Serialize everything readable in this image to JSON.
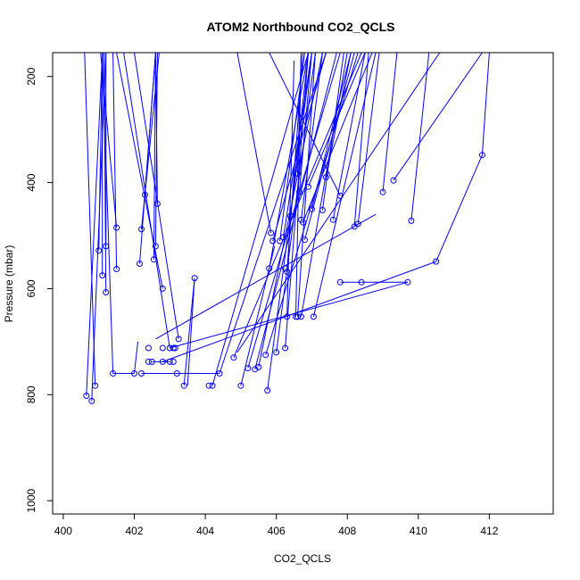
{
  "chart_data": {
    "type": "line",
    "title": "ATOM2 Northbound CO2_QCLS",
    "xlabel": "CO2_QCLS",
    "ylabel": "Pressure (mbar)",
    "xlim": [
      399.7,
      413.8
    ],
    "ylim": [
      1025,
      155
    ],
    "y_reversed": true,
    "x_ticks": [
      400,
      402,
      404,
      406,
      408,
      410,
      412
    ],
    "y_ticks": [
      200,
      400,
      600,
      800,
      1000
    ],
    "grid": false,
    "legend": "none",
    "series_color": "#0000ff",
    "marker": "open-circle",
    "series": [
      {
        "points": [
          [
            400.65,
            802
          ],
          [
            400.8,
            812
          ],
          [
            400.9,
            783
          ],
          [
            401.0,
            528
          ],
          [
            401.1,
            575
          ],
          [
            401.2,
            607
          ],
          [
            401.2,
            520
          ],
          [
            401.4,
            760
          ],
          [
            401.5,
            485
          ],
          [
            401.5,
            563
          ]
        ]
      },
      {
        "points": [
          [
            402.0,
            760
          ],
          [
            402.2,
            760
          ],
          [
            402.15,
            553
          ],
          [
            402.2,
            488
          ],
          [
            402.3,
            423
          ],
          [
            402.4,
            738
          ],
          [
            402.4,
            712
          ],
          [
            402.5,
            738
          ],
          [
            402.55,
            545
          ],
          [
            402.6,
            520
          ],
          [
            402.65,
            440
          ],
          [
            402.8,
            712
          ],
          [
            402.8,
            600
          ],
          [
            402.8,
            738
          ]
        ]
      },
      {
        "points": [
          [
            403.0,
            712
          ],
          [
            403.0,
            738
          ],
          [
            403.1,
            712
          ],
          [
            403.1,
            738
          ],
          [
            403.15,
            712
          ],
          [
            403.2,
            760
          ],
          [
            403.25,
            695
          ],
          [
            403.4,
            783
          ],
          [
            403.7,
            580
          ],
          [
            404.1,
            783
          ],
          [
            404.2,
            783
          ],
          [
            404.4,
            760
          ]
        ]
      },
      {
        "points": [
          [
            404.8,
            730
          ],
          [
            405.0,
            783
          ],
          [
            405.2,
            750
          ],
          [
            405.4,
            752
          ],
          [
            405.5,
            748
          ],
          [
            405.7,
            725
          ],
          [
            405.75,
            792
          ],
          [
            405.8,
            562
          ],
          [
            405.85,
            495
          ],
          [
            405.9,
            510
          ],
          [
            406.0,
            720
          ],
          [
            406.1,
            510
          ]
        ]
      },
      {
        "points": [
          [
            406.2,
            503
          ],
          [
            406.25,
            712
          ],
          [
            406.25,
            562
          ],
          [
            406.3,
            568
          ],
          [
            406.3,
            653
          ],
          [
            406.4,
            463
          ],
          [
            406.55,
            653
          ],
          [
            406.6,
            653
          ],
          [
            406.6,
            383
          ],
          [
            406.65,
            418
          ],
          [
            406.7,
            653
          ],
          [
            406.7,
            470
          ],
          [
            406.75,
            475
          ],
          [
            406.8,
            508
          ],
          [
            406.9,
            408
          ],
          [
            407.0,
            450
          ],
          [
            407.05,
            653
          ],
          [
            407.3,
            452
          ],
          [
            407.4,
            390
          ],
          [
            407.6,
            470
          ],
          [
            407.8,
            425
          ]
        ]
      },
      {
        "points": [
          [
            407.8,
            588
          ],
          [
            408.2,
            483
          ],
          [
            408.3,
            478
          ],
          [
            408.4,
            588
          ],
          [
            409.0,
            418
          ],
          [
            409.3,
            396
          ],
          [
            409.7,
            588
          ],
          [
            409.8,
            472
          ],
          [
            410.5,
            549
          ],
          [
            411.8,
            348
          ]
        ]
      }
    ],
    "line_segments": [
      [
        [
          400.65,
          802
        ],
        [
          401.1,
          155
        ]
      ],
      [
        [
          400.8,
          812
        ],
        [
          401.2,
          155
        ]
      ],
      [
        [
          400.9,
          783
        ],
        [
          400.6,
          155
        ]
      ],
      [
        [
          401.0,
          528
        ],
        [
          401.1,
          155
        ]
      ],
      [
        [
          401.1,
          575
        ],
        [
          401.1,
          155
        ]
      ],
      [
        [
          401.2,
          607
        ],
        [
          401.15,
          155
        ]
      ],
      [
        [
          401.2,
          520
        ],
        [
          401.2,
          155
        ]
      ],
      [
        [
          401.4,
          760
        ],
        [
          401.1,
          155
        ]
      ],
      [
        [
          401.5,
          485
        ],
        [
          401.05,
          155
        ]
      ],
      [
        [
          401.5,
          563
        ],
        [
          401.4,
          155
        ]
      ],
      [
        [
          402.15,
          553
        ],
        [
          402.6,
          155
        ]
      ],
      [
        [
          402.2,
          488
        ],
        [
          402.7,
          155
        ]
      ],
      [
        [
          402.3,
          423
        ],
        [
          402.6,
          155
        ]
      ],
      [
        [
          402.55,
          545
        ],
        [
          402.6,
          155
        ]
      ],
      [
        [
          402.6,
          520
        ],
        [
          402.65,
          155
        ]
      ],
      [
        [
          402.65,
          440
        ],
        [
          402.6,
          155
        ]
      ],
      [
        [
          402.8,
          600
        ],
        [
          401.5,
          155
        ]
      ],
      [
        [
          403.0,
          712
        ],
        [
          401.7,
          155
        ]
      ],
      [
        [
          403.25,
          695
        ],
        [
          402.0,
          155
        ]
      ],
      [
        [
          402.0,
          760
        ],
        [
          402.1,
          700
        ]
      ],
      [
        [
          402.2,
          760
        ],
        [
          404.4,
          760
        ]
      ],
      [
        [
          403.4,
          783
        ],
        [
          403.7,
          580
        ]
      ],
      [
        [
          403.7,
          580
        ],
        [
          403.5,
          783
        ]
      ],
      [
        [
          404.2,
          783
        ],
        [
          406.9,
          155
        ]
      ],
      [
        [
          404.4,
          760
        ],
        [
          407.4,
          155
        ]
      ],
      [
        [
          404.8,
          730
        ],
        [
          408.4,
          155
        ]
      ],
      [
        [
          404.9,
          720
        ],
        [
          410.6,
          155
        ]
      ],
      [
        [
          405.0,
          783
        ],
        [
          405.95,
          520
        ]
      ],
      [
        [
          405.2,
          750
        ],
        [
          407.8,
          155
        ]
      ],
      [
        [
          405.4,
          752
        ],
        [
          407.7,
          155
        ]
      ],
      [
        [
          405.5,
          748
        ],
        [
          407.3,
          155
        ]
      ],
      [
        [
          405.7,
          725
        ],
        [
          408.3,
          155
        ]
      ],
      [
        [
          405.75,
          792
        ],
        [
          407.0,
          155
        ]
      ],
      [
        [
          405.8,
          562
        ],
        [
          406.9,
          155
        ]
      ],
      [
        [
          405.85,
          495
        ],
        [
          404.9,
          155
        ]
      ],
      [
        [
          405.9,
          510
        ],
        [
          407.4,
          155
        ]
      ],
      [
        [
          406.0,
          720
        ],
        [
          407.1,
          155
        ]
      ],
      [
        [
          406.1,
          510
        ],
        [
          406.8,
          155
        ]
      ],
      [
        [
          406.2,
          503
        ],
        [
          407.0,
          155
        ]
      ],
      [
        [
          406.25,
          712
        ],
        [
          406.9,
          155
        ]
      ],
      [
        [
          406.3,
          568
        ],
        [
          406.75,
          155
        ]
      ],
      [
        [
          406.3,
          653
        ],
        [
          406.5,
          170
        ]
      ],
      [
        [
          406.4,
          463
        ],
        [
          406.9,
          155
        ]
      ],
      [
        [
          406.55,
          653
        ],
        [
          406.7,
          155
        ]
      ],
      [
        [
          406.6,
          653
        ],
        [
          407.1,
          155
        ]
      ],
      [
        [
          406.6,
          383
        ],
        [
          406.7,
          155
        ]
      ],
      [
        [
          406.65,
          418
        ],
        [
          407.0,
          155
        ]
      ],
      [
        [
          406.7,
          653
        ],
        [
          408.0,
          155
        ]
      ],
      [
        [
          406.7,
          470
        ],
        [
          407.3,
          155
        ]
      ],
      [
        [
          406.75,
          475
        ],
        [
          408.7,
          155
        ]
      ],
      [
        [
          406.8,
          508
        ],
        [
          408.2,
          155
        ]
      ],
      [
        [
          406.9,
          408
        ],
        [
          408.5,
          155
        ]
      ],
      [
        [
          407.0,
          450
        ],
        [
          408.1,
          155
        ]
      ],
      [
        [
          407.05,
          653
        ],
        [
          408.8,
          155
        ]
      ],
      [
        [
          407.3,
          452
        ],
        [
          407.9,
          155
        ]
      ],
      [
        [
          407.4,
          390
        ],
        [
          408.1,
          155
        ]
      ],
      [
        [
          407.6,
          470
        ],
        [
          408.5,
          155
        ]
      ],
      [
        [
          407.8,
          425
        ],
        [
          405.8,
          155
        ]
      ],
      [
        [
          402.6,
          695
        ],
        [
          408.8,
          460
        ]
      ],
      [
        [
          402.8,
          738
        ],
        [
          410.5,
          549
        ]
      ],
      [
        [
          403.0,
          712
        ],
        [
          409.7,
          588
        ]
      ],
      [
        [
          407.8,
          588
        ],
        [
          408.4,
          588
        ]
      ],
      [
        [
          408.4,
          588
        ],
        [
          409.7,
          588
        ]
      ],
      [
        [
          408.2,
          483
        ],
        [
          408.6,
          155
        ]
      ],
      [
        [
          408.3,
          478
        ],
        [
          408.9,
          155
        ]
      ],
      [
        [
          409.0,
          418
        ],
        [
          409.4,
          155
        ]
      ],
      [
        [
          409.3,
          396
        ],
        [
          411.8,
          155
        ]
      ],
      [
        [
          409.8,
          472
        ],
        [
          410.3,
          155
        ]
      ],
      [
        [
          410.5,
          549
        ],
        [
          411.8,
          348
        ]
      ],
      [
        [
          411.8,
          348
        ],
        [
          412.0,
          155
        ]
      ],
      [
        [
          402.5,
          738
        ],
        [
          403.0,
          738
        ]
      ],
      [
        [
          401.4,
          760
        ],
        [
          402.0,
          760
        ]
      ]
    ]
  }
}
